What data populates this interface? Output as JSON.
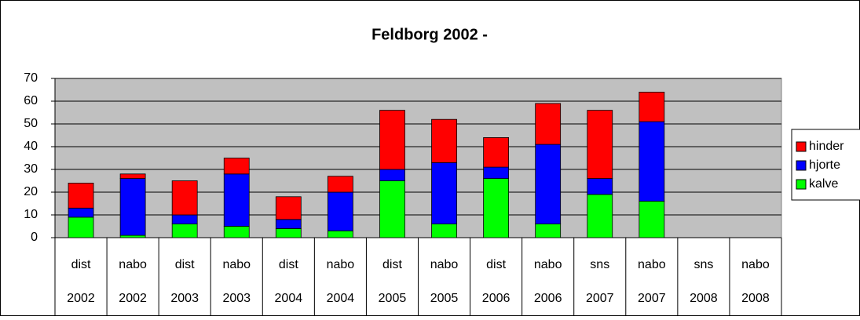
{
  "chart_data": {
    "type": "stacked_bar",
    "title": "Feldborg 2002 -",
    "categories": [
      "dist",
      "nabo",
      "dist",
      "nabo",
      "dist",
      "nabo",
      "dist",
      "nabo",
      "dist",
      "nabo",
      "sns",
      "nabo",
      "sns",
      "nabo"
    ],
    "years": [
      "2002",
      "2002",
      "2003",
      "2003",
      "2004",
      "2004",
      "2005",
      "2005",
      "2006",
      "2006",
      "2007",
      "2007",
      "2008",
      "2008"
    ],
    "series": [
      {
        "name": "kalve",
        "color": "#00ff00",
        "values": [
          9,
          1,
          6,
          5,
          4,
          3,
          25,
          6,
          26,
          6,
          19,
          16,
          null,
          null
        ]
      },
      {
        "name": "hjorte",
        "color": "#0000ff",
        "values": [
          4,
          25,
          4,
          23,
          4,
          17,
          5,
          27,
          5,
          35,
          7,
          35,
          null,
          null
        ]
      },
      {
        "name": "hinder",
        "color": "#ff0000",
        "values": [
          11,
          2,
          15,
          7,
          10,
          7,
          26,
          19,
          13,
          18,
          30,
          13,
          null,
          null
        ]
      }
    ],
    "ylim": [
      0,
      70
    ],
    "yticks": [
      0,
      10,
      20,
      30,
      40,
      50,
      60,
      70
    ],
    "grid": true,
    "legend": "right"
  }
}
